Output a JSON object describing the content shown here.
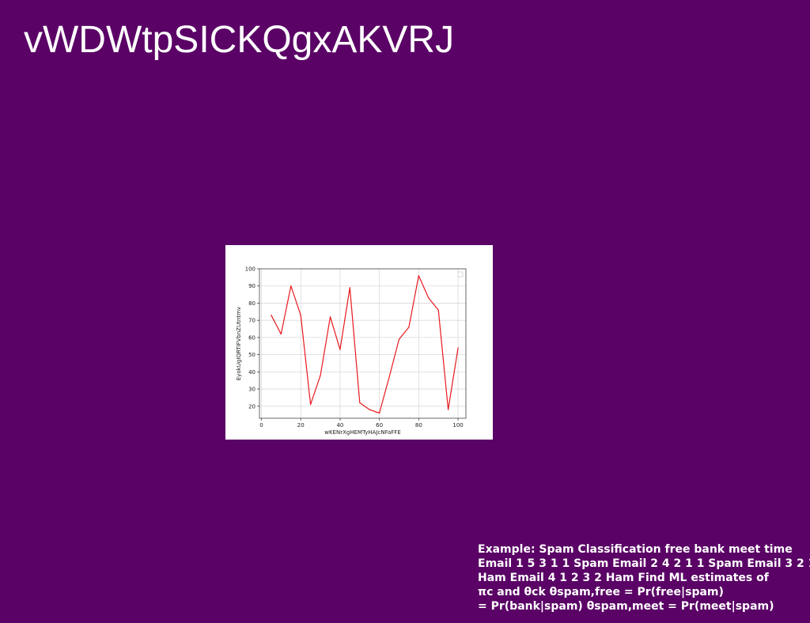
{
  "slide": {
    "title": "vWDWtpSICKQgxAKVRJ",
    "footnote_lines": [
      "Example: Spam Classification free bank meet time",
      "Email 1 5 3 1 1 Spam Email 2 4 2 1 1 Spam Email 3 2 1 2",
      "Ham Email 4 1 2 3 2 Ham Find ML estimates of",
      "πc and θck θspam,free = Pr(free|spam)",
      "= Pr(bank|spam) θspam,meet = Pr(meet|spam)"
    ]
  },
  "chart_data": {
    "type": "line",
    "title": "",
    "xlabel": "wKENrXgHEMTyHAJcNFaFFE",
    "ylabel": "EyokUgIQRTIFVbnZUtntmv",
    "xlim": [
      -1,
      104
    ],
    "ylim": [
      13,
      100
    ],
    "x_ticks": [
      0,
      20,
      40,
      60,
      80,
      100
    ],
    "y_ticks": [
      20,
      30,
      40,
      50,
      60,
      70,
      80,
      90,
      100
    ],
    "grid": true,
    "legend": "top-right",
    "series": [
      {
        "color": "#e8191d",
        "x": [
          5,
          10,
          15,
          20,
          25,
          30,
          35,
          40,
          45,
          50,
          55,
          60,
          65,
          70,
          75,
          80,
          85,
          90,
          95,
          100
        ],
        "y": [
          73,
          62,
          90,
          73,
          21,
          38,
          72,
          53,
          89,
          22,
          18,
          16,
          37,
          59,
          66,
          96,
          83,
          76,
          18,
          54
        ]
      }
    ]
  }
}
